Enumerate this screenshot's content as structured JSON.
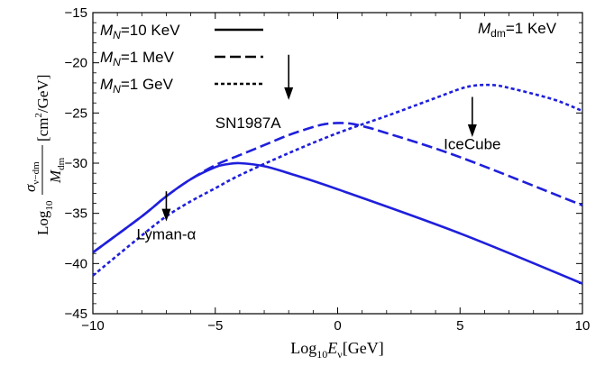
{
  "chart_data": {
    "type": "line",
    "xlim": [
      -10,
      10
    ],
    "ylim": [
      -45,
      -15
    ],
    "xticks": [
      -10,
      -5,
      0,
      5,
      10
    ],
    "yticks": [
      -45,
      -40,
      -35,
      -30,
      -25,
      -20,
      -15
    ],
    "xlabel": {
      "prefix": "Log",
      "sub": "10",
      "var": "E",
      "varsub": "ν",
      "suffix": "[GeV]"
    },
    "ylabel": {
      "prefix": "Log",
      "sub": "10",
      "num": "σ",
      "numsub": "ν−dm",
      "den": "M",
      "densub": "dm",
      "suffix": "[cm",
      "sup": "2",
      "suffix2": "/GeV]"
    },
    "line_color": "#1f1fdc",
    "series": [
      {
        "name": "M_N=10 KeV",
        "style": "solid",
        "x": [
          -10,
          -8,
          -7,
          -6,
          -5,
          -4.5,
          -4,
          -3,
          -2,
          0,
          5,
          10
        ],
        "y": [
          -38.9,
          -35.3,
          -33.3,
          -31.6,
          -30.4,
          -30.1,
          -30.0,
          -30.3,
          -31.0,
          -32.6,
          -37.0,
          -42.0
        ]
      },
      {
        "name": "M_N=1 MeV",
        "style": "dashed",
        "x": [
          -10,
          -8,
          -7,
          -6,
          -5,
          -4,
          -3,
          -2,
          -1,
          -0.5,
          0,
          0.5,
          1,
          2,
          5,
          10
        ],
        "y": [
          -38.9,
          -35.3,
          -33.3,
          -31.6,
          -30.2,
          -29.2,
          -28.2,
          -27.2,
          -26.4,
          -26.1,
          -26.0,
          -26.05,
          -26.3,
          -27.0,
          -29.4,
          -34.2
        ]
      },
      {
        "name": "M_N=1 GeV",
        "style": "dotted",
        "x": [
          -10,
          -8,
          -7,
          -6,
          -5,
          -4,
          -2,
          0,
          2,
          4,
          5,
          5.5,
          6,
          6.5,
          7,
          8,
          9,
          10
        ],
        "y": [
          -41.2,
          -37.2,
          -35.3,
          -33.8,
          -32.5,
          -31.2,
          -29.0,
          -27.0,
          -25.3,
          -23.5,
          -22.6,
          -22.3,
          -22.2,
          -22.25,
          -22.5,
          -23.1,
          -23.8,
          -24.8
        ]
      }
    ],
    "legend": {
      "position": "top-left",
      "items": [
        {
          "base": "M",
          "sub": "N",
          "text": "=10 KeV",
          "style": "solid"
        },
        {
          "base": "M",
          "sub": "N",
          "text": "=1 MeV",
          "style": "dashed"
        },
        {
          "base": "M",
          "sub": "N",
          "text": "=1 GeV",
          "style": "dotted"
        }
      ]
    },
    "corner_label": {
      "base": "M",
      "sub": "dm",
      "text": "=1 KeV"
    },
    "annotations": [
      {
        "text": "Lyman-α",
        "x": -7.0,
        "arrow_top": -32.8,
        "arrow_bottom": -35.8
      },
      {
        "text": "SN1987A",
        "x": -2.0,
        "arrow_top": -19.2,
        "arrow_bottom": -23.7
      },
      {
        "text": "IceCube",
        "x": 5.5,
        "arrow_top": -23.4,
        "arrow_bottom": -27.4
      }
    ]
  }
}
